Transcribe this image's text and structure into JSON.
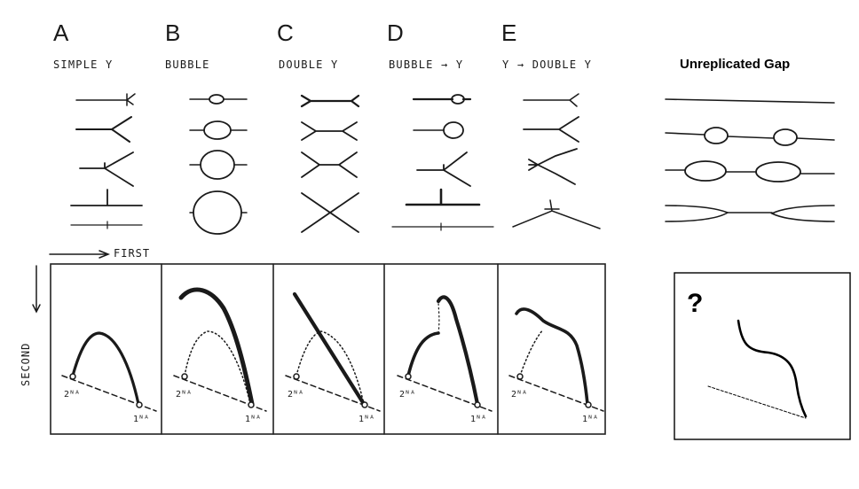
{
  "columns": [
    {
      "letter": "A",
      "caption": "SIMPLE Y"
    },
    {
      "letter": "B",
      "caption": "BUBBLE"
    },
    {
      "letter": "C",
      "caption": "DOUBLE Y"
    },
    {
      "letter": "D",
      "caption": "BUBBLE → Y"
    },
    {
      "letter": "E",
      "caption": "Y → DOUBLE Y"
    }
  ],
  "gap_title": "Unreplicated Gap",
  "axis": {
    "first": "FIRST",
    "second": "SECOND"
  },
  "spot_labels": {
    "two_n": "2ᴺᴬ",
    "one_n": "1ᴺᴬ"
  },
  "unknown_mark": "?",
  "colors": {
    "ink": "#1a1a1a",
    "background": "#ffffff",
    "frame": "#222222"
  }
}
